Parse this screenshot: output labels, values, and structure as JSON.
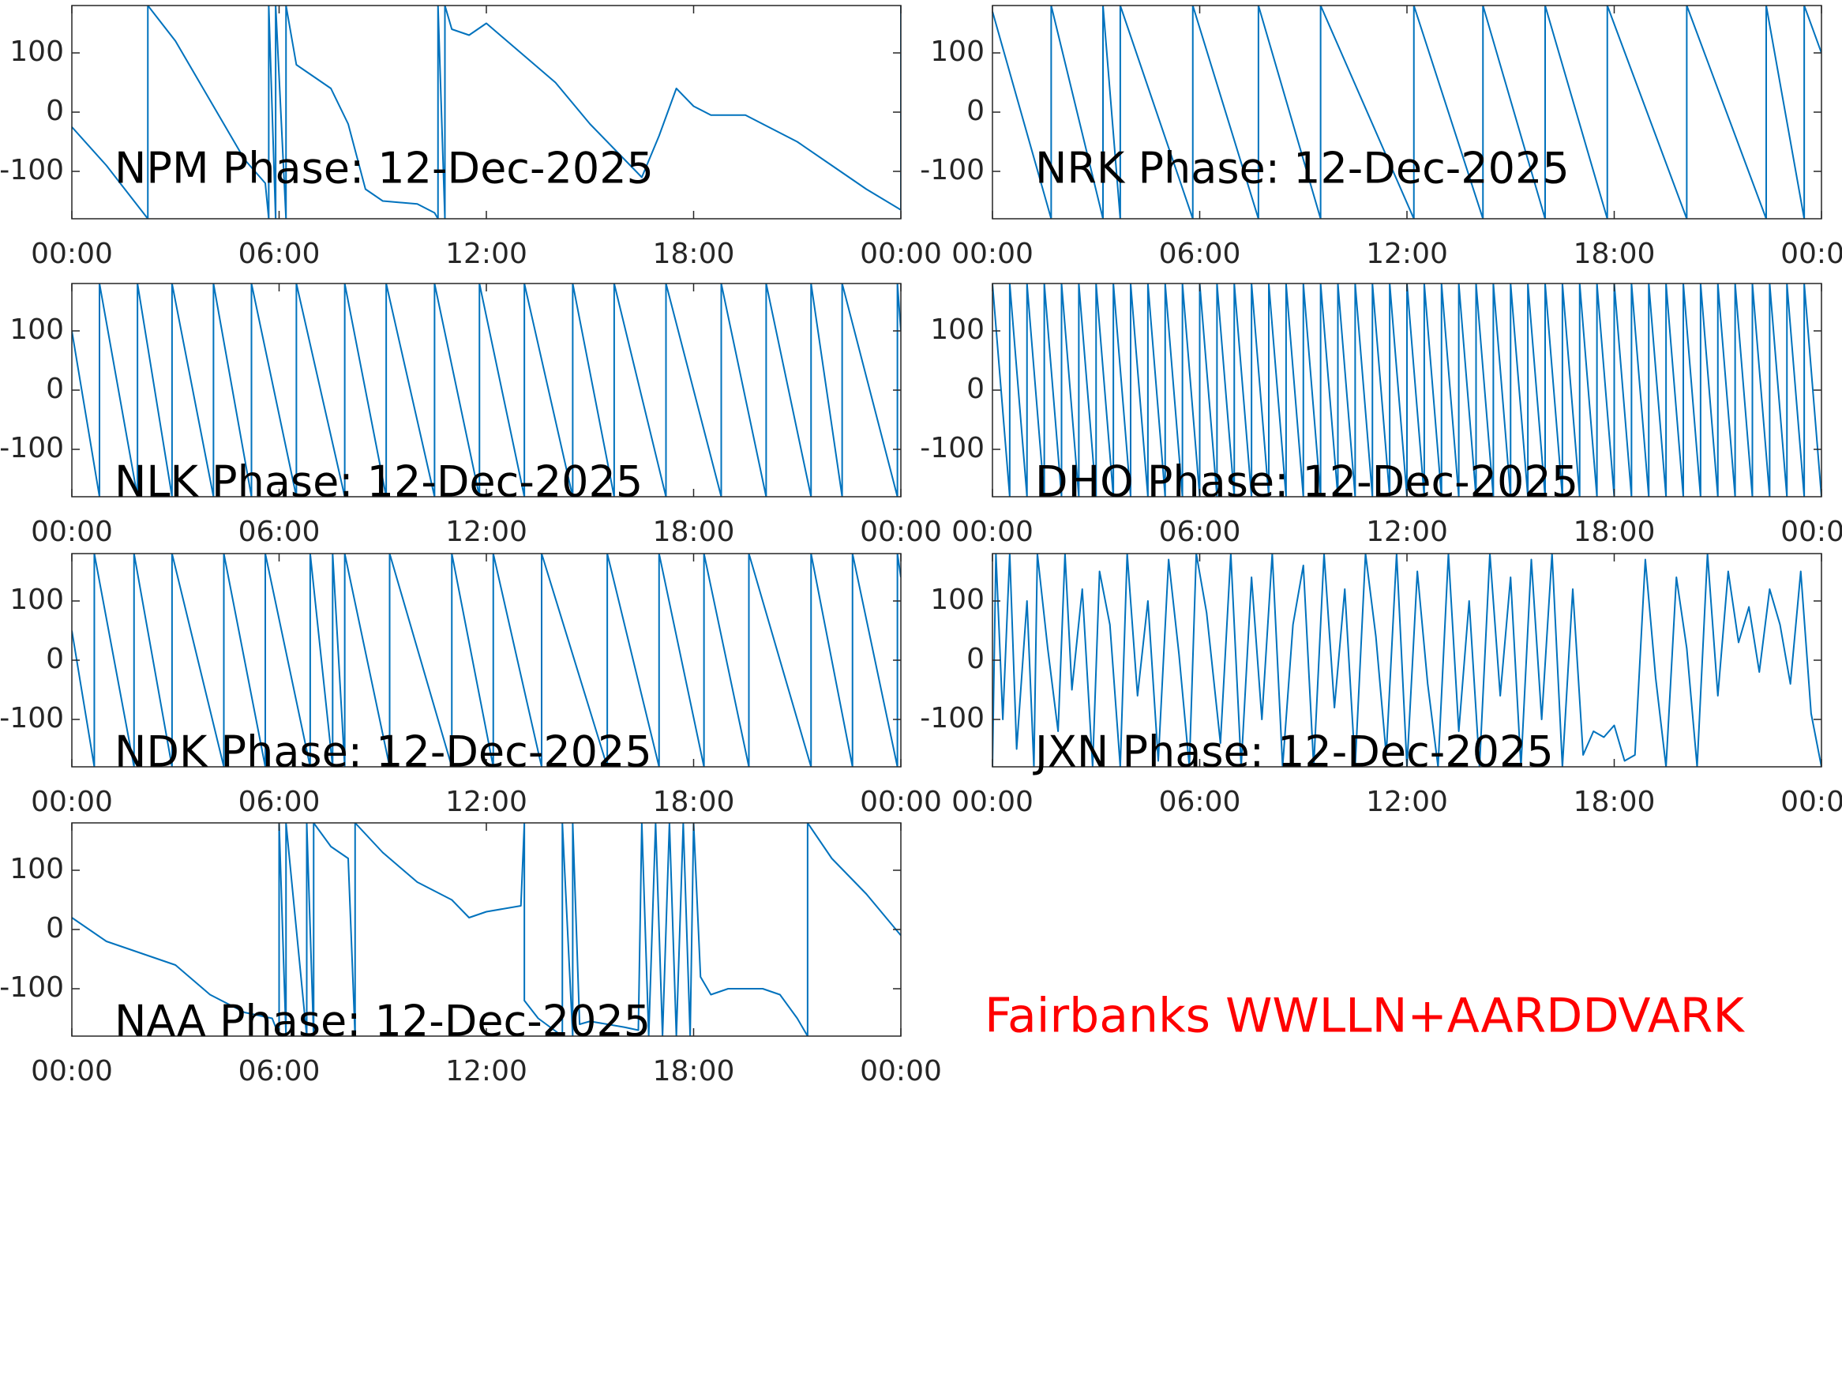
{
  "chart_data": [
    {
      "type": "line",
      "title": "NPM Phase: 12-Dec-2025",
      "color": "#0072bd",
      "x": [
        0,
        1,
        2.2,
        2.2,
        3,
        4,
        5,
        5.6,
        5.7,
        5.7,
        5.9,
        5.9,
        6.2,
        6.2,
        6.5,
        7,
        7.5,
        8,
        8.5,
        9,
        10,
        10.5,
        10.6,
        10.6,
        10.8,
        10.8,
        11,
        11.5,
        12,
        13,
        14,
        15,
        16,
        16.5,
        17,
        17.5,
        18,
        18.5,
        19.5,
        21,
        22,
        23,
        24,
        24
      ],
      "values": [
        -25,
        -90,
        -180,
        180,
        120,
        20,
        -80,
        -120,
        -180,
        180,
        -180,
        180,
        -180,
        180,
        80,
        60,
        40,
        -20,
        -130,
        -150,
        -155,
        -170,
        -180,
        180,
        -180,
        180,
        140,
        130,
        150,
        100,
        50,
        -20,
        -80,
        -110,
        -40,
        40,
        10,
        -5,
        -5,
        -50,
        -90,
        -130,
        -165,
        180
      ],
      "xlim": [
        0,
        24
      ],
      "xticks": [
        {
          "value": 0,
          "label": "00:00"
        },
        {
          "value": 6,
          "label": "06:00"
        },
        {
          "value": 12,
          "label": "12:00"
        },
        {
          "value": 18,
          "label": "18:00"
        },
        {
          "value": 24,
          "label": "00:00"
        }
      ],
      "ylim": [
        -180,
        180
      ],
      "yticks": [
        -100,
        0,
        100
      ]
    },
    {
      "type": "line",
      "title": "NRK Phase: 12-Dec-2025",
      "color": "#0072bd",
      "x": [
        0,
        1.7,
        1.7,
        3.2,
        3.2,
        3.7,
        3.7,
        5.8,
        5.8,
        7.7,
        7.7,
        9.5,
        9.5,
        12.2,
        12.2,
        14.2,
        14.2,
        16,
        16,
        17.8,
        17.8,
        20.1,
        20.1,
        22.4,
        22.4,
        23.5,
        23.5,
        24
      ],
      "values": [
        170,
        -180,
        180,
        -180,
        180,
        -180,
        180,
        -180,
        180,
        -180,
        180,
        -180,
        180,
        -180,
        180,
        -180,
        180,
        -180,
        180,
        -180,
        180,
        -180,
        180,
        -180,
        180,
        -180,
        180,
        100
      ],
      "xlim": [
        0,
        24
      ],
      "xticks": [
        {
          "value": 0,
          "label": "00:00"
        },
        {
          "value": 6,
          "label": "06:00"
        },
        {
          "value": 12,
          "label": "12:00"
        },
        {
          "value": 18,
          "label": "18:00"
        },
        {
          "value": 24,
          "label": "00:00"
        }
      ],
      "ylim": [
        -180,
        180
      ],
      "yticks": [
        -100,
        0,
        100
      ]
    },
    {
      "type": "line",
      "title": "NLK Phase: 12-Dec-2025",
      "color": "#0072bd",
      "x": [
        0,
        0.8,
        0.8,
        1.9,
        1.9,
        2.9,
        2.9,
        4.1,
        4.1,
        5.2,
        5.2,
        6.5,
        6.5,
        7.9,
        7.9,
        9.1,
        9.1,
        10.5,
        10.5,
        11.8,
        11.8,
        13.1,
        13.1,
        14.5,
        14.5,
        15.7,
        15.7,
        17.2,
        17.2,
        18.8,
        18.8,
        20.1,
        20.1,
        21.4,
        21.4,
        22.3,
        22.3,
        23.9,
        23.9,
        24
      ],
      "values": [
        100,
        -180,
        180,
        -180,
        180,
        -180,
        180,
        -180,
        180,
        -180,
        180,
        -180,
        180,
        -180,
        180,
        -180,
        180,
        -180,
        180,
        -180,
        180,
        -180,
        180,
        -180,
        180,
        -180,
        180,
        -180,
        180,
        -180,
        180,
        -180,
        180,
        -180,
        180,
        -180,
        180,
        -180,
        180,
        100
      ],
      "xlim": [
        0,
        24
      ],
      "xticks": [
        {
          "value": 0,
          "label": "00:00"
        },
        {
          "value": 6,
          "label": "06:00"
        },
        {
          "value": 12,
          "label": "12:00"
        },
        {
          "value": 18,
          "label": "18:00"
        },
        {
          "value": 24,
          "label": "00:00"
        }
      ],
      "ylim": [
        -180,
        180
      ],
      "yticks": [
        -100,
        0,
        100
      ]
    },
    {
      "type": "line",
      "title": "DHO Phase: 12-Dec-2025",
      "color": "#0072bd",
      "x": [
        0,
        0.5,
        0.5,
        1,
        1,
        1.5,
        1.5,
        2,
        2,
        2.5,
        2.5,
        3,
        3,
        3.5,
        3.5,
        4,
        4,
        4.5,
        4.5,
        5,
        5,
        5.5,
        5.5,
        6,
        6,
        6.5,
        6.5,
        7,
        7,
        7.5,
        7.5,
        8,
        8,
        8.5,
        8.5,
        9,
        9,
        9.5,
        9.5,
        10,
        10,
        10.5,
        10.5,
        11,
        11,
        11.5,
        11.5,
        12,
        12,
        12.5,
        12.5,
        13,
        13,
        13.5,
        13.5,
        14,
        14,
        14.5,
        14.5,
        15,
        15,
        15.5,
        15.5,
        16,
        16,
        16.5,
        16.5,
        17,
        17,
        17.5,
        17.5,
        18,
        18,
        18.5,
        18.5,
        19,
        19,
        19.5,
        19.5,
        20,
        20,
        20.5,
        20.5,
        21,
        21,
        21.5,
        21.5,
        22,
        22,
        22.5,
        22.5,
        23,
        23,
        23.5,
        23.5,
        24
      ],
      "values": [
        180,
        -180,
        180,
        -180,
        180,
        -180,
        180,
        -180,
        180,
        -180,
        180,
        -180,
        180,
        -180,
        180,
        -180,
        180,
        -180,
        180,
        -180,
        180,
        -180,
        180,
        -180,
        180,
        -180,
        180,
        -180,
        180,
        -180,
        180,
        -180,
        180,
        -180,
        180,
        -180,
        180,
        -180,
        180,
        -180,
        180,
        -180,
        180,
        -180,
        180,
        -180,
        180,
        -180,
        180,
        -180,
        180,
        -180,
        180,
        -180,
        180,
        -180,
        180,
        -180,
        180,
        -180,
        180,
        -180,
        180,
        -180,
        180,
        -180,
        180,
        -180,
        180,
        -180,
        180,
        -180,
        180,
        -180,
        180,
        -180,
        180,
        -180,
        180,
        -180,
        180,
        -180,
        180,
        -180,
        180,
        -180,
        180,
        -180,
        180,
        -180,
        180,
        -180,
        180,
        -180,
        180,
        -180
      ],
      "xlim": [
        0,
        24
      ],
      "xticks": [
        {
          "value": 0,
          "label": "00:00"
        },
        {
          "value": 6,
          "label": "06:00"
        },
        {
          "value": 12,
          "label": "12:00"
        },
        {
          "value": 18,
          "label": "18:00"
        },
        {
          "value": 24,
          "label": "00:00"
        }
      ],
      "ylim": [
        -180,
        180
      ],
      "yticks": [
        -100,
        0,
        100
      ]
    },
    {
      "type": "line",
      "title": "NDK Phase: 12-Dec-2025",
      "color": "#0072bd",
      "x": [
        0,
        0.65,
        0.65,
        1.8,
        1.8,
        2.9,
        2.9,
        4.4,
        4.4,
        5.6,
        5.6,
        6.9,
        6.9,
        7.55,
        7.55,
        7.9,
        7.9,
        9.2,
        9.2,
        11,
        11,
        12.2,
        12.2,
        13.6,
        13.6,
        15.5,
        15.5,
        17,
        17,
        18.3,
        18.3,
        19.6,
        19.6,
        21.4,
        21.4,
        22.6,
        22.6,
        23.9,
        23.9,
        24
      ],
      "values": [
        50,
        -180,
        180,
        -180,
        180,
        -180,
        180,
        -180,
        180,
        -180,
        180,
        -180,
        180,
        -180,
        180,
        -180,
        180,
        -180,
        180,
        -180,
        180,
        -180,
        180,
        -180,
        180,
        -180,
        180,
        -180,
        180,
        -180,
        180,
        -180,
        180,
        -180,
        180,
        -180,
        180,
        -180,
        180,
        140
      ],
      "xlim": [
        0,
        24
      ],
      "xticks": [
        {
          "value": 0,
          "label": "00:00"
        },
        {
          "value": 6,
          "label": "06:00"
        },
        {
          "value": 12,
          "label": "12:00"
        },
        {
          "value": 18,
          "label": "18:00"
        },
        {
          "value": 24,
          "label": "00:00"
        }
      ],
      "ylim": [
        -180,
        180
      ],
      "yticks": [
        -100,
        0,
        100
      ]
    },
    {
      "type": "line",
      "title": "JXN Phase: 12-Dec-2025",
      "color": "#0072bd",
      "x": [
        0,
        0.1,
        0.3,
        0.5,
        0.7,
        1,
        1.2,
        1.3,
        1.6,
        1.9,
        2.1,
        2.3,
        2.6,
        2.9,
        3.1,
        3.4,
        3.7,
        3.9,
        4.2,
        4.5,
        4.8,
        5.1,
        5.4,
        5.7,
        5.9,
        6.2,
        6.6,
        6.9,
        7.2,
        7.5,
        7.8,
        8.1,
        8.4,
        8.7,
        9,
        9.3,
        9.6,
        9.9,
        10.2,
        10.5,
        10.8,
        11.1,
        11.4,
        11.7,
        12,
        12.3,
        12.6,
        12.9,
        13.2,
        13.5,
        13.8,
        14.1,
        14.4,
        14.7,
        15,
        15.3,
        15.6,
        15.9,
        16.2,
        16.5,
        16.8,
        17.1,
        17.4,
        17.7,
        18,
        18.3,
        18.6,
        18.9,
        19.2,
        19.5,
        19.8,
        20.1,
        20.4,
        20.7,
        21,
        21.3,
        21.6,
        21.9,
        22.2,
        22.5,
        22.8,
        23.1,
        23.4,
        23.7,
        24
      ],
      "values": [
        -180,
        180,
        -100,
        180,
        -150,
        100,
        -180,
        180,
        20,
        -120,
        180,
        -50,
        120,
        -180,
        150,
        60,
        -180,
        180,
        -60,
        100,
        -170,
        170,
        10,
        -180,
        180,
        80,
        -140,
        180,
        -180,
        140,
        -100,
        180,
        -180,
        60,
        160,
        -180,
        180,
        -80,
        120,
        -180,
        180,
        40,
        -160,
        180,
        -180,
        150,
        -40,
        -180,
        180,
        -120,
        100,
        -180,
        180,
        -60,
        140,
        -180,
        170,
        -100,
        180,
        -180,
        120,
        -160,
        -120,
        -130,
        -110,
        -170,
        -160,
        170,
        -30,
        -180,
        140,
        20,
        -180,
        180,
        -60,
        150,
        30,
        90,
        -20,
        120,
        60,
        -40,
        150,
        -90,
        -180
      ],
      "xlim": [
        0,
        24
      ],
      "xticks": [
        {
          "value": 0,
          "label": "00:00"
        },
        {
          "value": 6,
          "label": "06:00"
        },
        {
          "value": 12,
          "label": "12:00"
        },
        {
          "value": 18,
          "label": "18:00"
        },
        {
          "value": 24,
          "label": "00:00"
        }
      ],
      "ylim": [
        -180,
        180
      ],
      "yticks": [
        -100,
        0,
        100
      ]
    },
    {
      "type": "line",
      "title": "NAA Phase: 12-Dec-2025",
      "color": "#0072bd",
      "x": [
        0,
        1,
        2,
        3,
        4,
        5,
        5.8,
        6,
        6,
        6.2,
        6.2,
        6.8,
        6.8,
        7,
        7,
        7.5,
        8,
        8.2,
        8.2,
        9,
        10,
        11,
        11.5,
        12,
        13,
        13.1,
        13.1,
        13.5,
        14.2,
        14.2,
        14.5,
        14.5,
        14.7,
        15,
        16,
        16.4,
        16.5,
        16.7,
        16.9,
        17.1,
        17.3,
        17.5,
        17.7,
        17.9,
        18,
        18.2,
        18.5,
        19,
        20,
        20.5,
        21,
        21.3,
        21.3,
        22,
        23,
        24
      ],
      "values": [
        20,
        -20,
        -40,
        -60,
        -110,
        -140,
        -150,
        -180,
        180,
        -180,
        180,
        -180,
        180,
        -180,
        180,
        140,
        120,
        -180,
        180,
        130,
        80,
        50,
        20,
        30,
        40,
        180,
        -120,
        -150,
        -180,
        180,
        -180,
        180,
        -160,
        -155,
        -165,
        -170,
        180,
        -180,
        180,
        -180,
        180,
        -180,
        180,
        -180,
        180,
        -80,
        -110,
        -100,
        -100,
        -110,
        -150,
        -180,
        180,
        120,
        60,
        -10
      ],
      "xlim": [
        0,
        24
      ],
      "xticks": [
        {
          "value": 0,
          "label": "00:00"
        },
        {
          "value": 6,
          "label": "06:00"
        },
        {
          "value": 12,
          "label": "12:00"
        },
        {
          "value": 18,
          "label": "18:00"
        },
        {
          "value": 24,
          "label": "00:00"
        }
      ],
      "ylim": [
        -180,
        180
      ],
      "yticks": [
        -100,
        0,
        100
      ]
    }
  ],
  "annotation": {
    "text": "Fairbanks WWLLN+AARDDVARK",
    "color": "#ff0000"
  }
}
